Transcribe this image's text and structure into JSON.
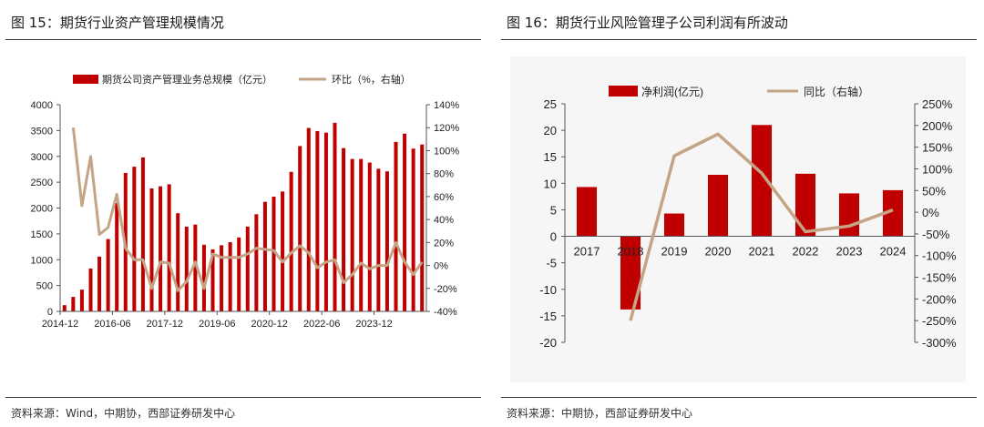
{
  "left": {
    "title": "图 15：期货行业资产管理规模情况",
    "source": "资料来源：Wind，中期协，西部证券研发中心"
  },
  "right": {
    "title": "图 16：期货行业风险管理子公司利润有所波动",
    "source": "资料来源：中期协，西部证券研发中心"
  },
  "colors": {
    "bar": "#c00000",
    "line": "#c4a484"
  },
  "chart_data": [
    {
      "type": "bar",
      "legend_position": "top",
      "grid": false,
      "x_ticks": [
        "2014-12",
        "2016-06",
        "2017-12",
        "2019-06",
        "2020-12",
        "2022-06",
        "2023-12"
      ],
      "y_ticks": [
        "0",
        "500",
        "1000",
        "1500",
        "2000",
        "2500",
        "3000",
        "3500",
        "4000"
      ],
      "y2_ticks": [
        "-40%",
        "-20%",
        "0%",
        "20%",
        "40%",
        "60%",
        "80%",
        "100%",
        "120%",
        "140%"
      ],
      "ylim": [
        0,
        4000
      ],
      "y2lim": [
        -40,
        140
      ],
      "series": [
        {
          "name": "期货公司资产管理业务总规模（亿元）",
          "type": "bar",
          "values": [
            120,
            280,
            420,
            830,
            1060,
            1400,
            2100,
            2680,
            2800,
            2980,
            2380,
            2420,
            2460,
            1900,
            1640,
            1680,
            1290,
            1200,
            1280,
            1340,
            1430,
            1640,
            1880,
            2120,
            2220,
            2320,
            2700,
            3200,
            3550,
            3490,
            3460,
            3650,
            3160,
            2950,
            2950,
            2880,
            2760,
            2710,
            3280,
            3440,
            3150,
            3230
          ]
        },
        {
          "name": "环比（%，右轴）",
          "type": "line",
          "axis": "right",
          "values": [
            120,
            52,
            95,
            27,
            33,
            62,
            15,
            5,
            5,
            -20,
            3,
            2,
            -22,
            -14,
            3,
            -20,
            10,
            7,
            7,
            7,
            10,
            15,
            14,
            13,
            3,
            11,
            17,
            11,
            -2,
            3,
            5,
            -15,
            -8,
            2,
            -3,
            0,
            0,
            20,
            3,
            -8,
            3
          ]
        }
      ]
    },
    {
      "type": "bar",
      "legend_position": "top",
      "grid": false,
      "categories": [
        "2017",
        "2018",
        "2019",
        "2020",
        "2021",
        "2022",
        "2023",
        "2024"
      ],
      "y_ticks": [
        "-20",
        "-15",
        "-10",
        "-5",
        "0",
        "5",
        "10",
        "15",
        "20",
        "25"
      ],
      "y2_ticks": [
        "-300%",
        "-250%",
        "-200%",
        "-150%",
        "-100%",
        "-50%",
        "0%",
        "50%",
        "100%",
        "150%",
        "200%",
        "250%"
      ],
      "ylim": [
        -20,
        25
      ],
      "y2lim": [
        -300,
        250
      ],
      "series": [
        {
          "name": "净利润(亿元)",
          "type": "bar",
          "values": [
            9.3,
            -13.8,
            4.3,
            11.6,
            21.0,
            11.8,
            8.1,
            8.7
          ]
        },
        {
          "name": "同比（右轴）",
          "type": "line",
          "axis": "right",
          "values": [
            null,
            -250,
            130,
            180,
            90,
            -45,
            -32,
            5
          ]
        }
      ]
    }
  ]
}
